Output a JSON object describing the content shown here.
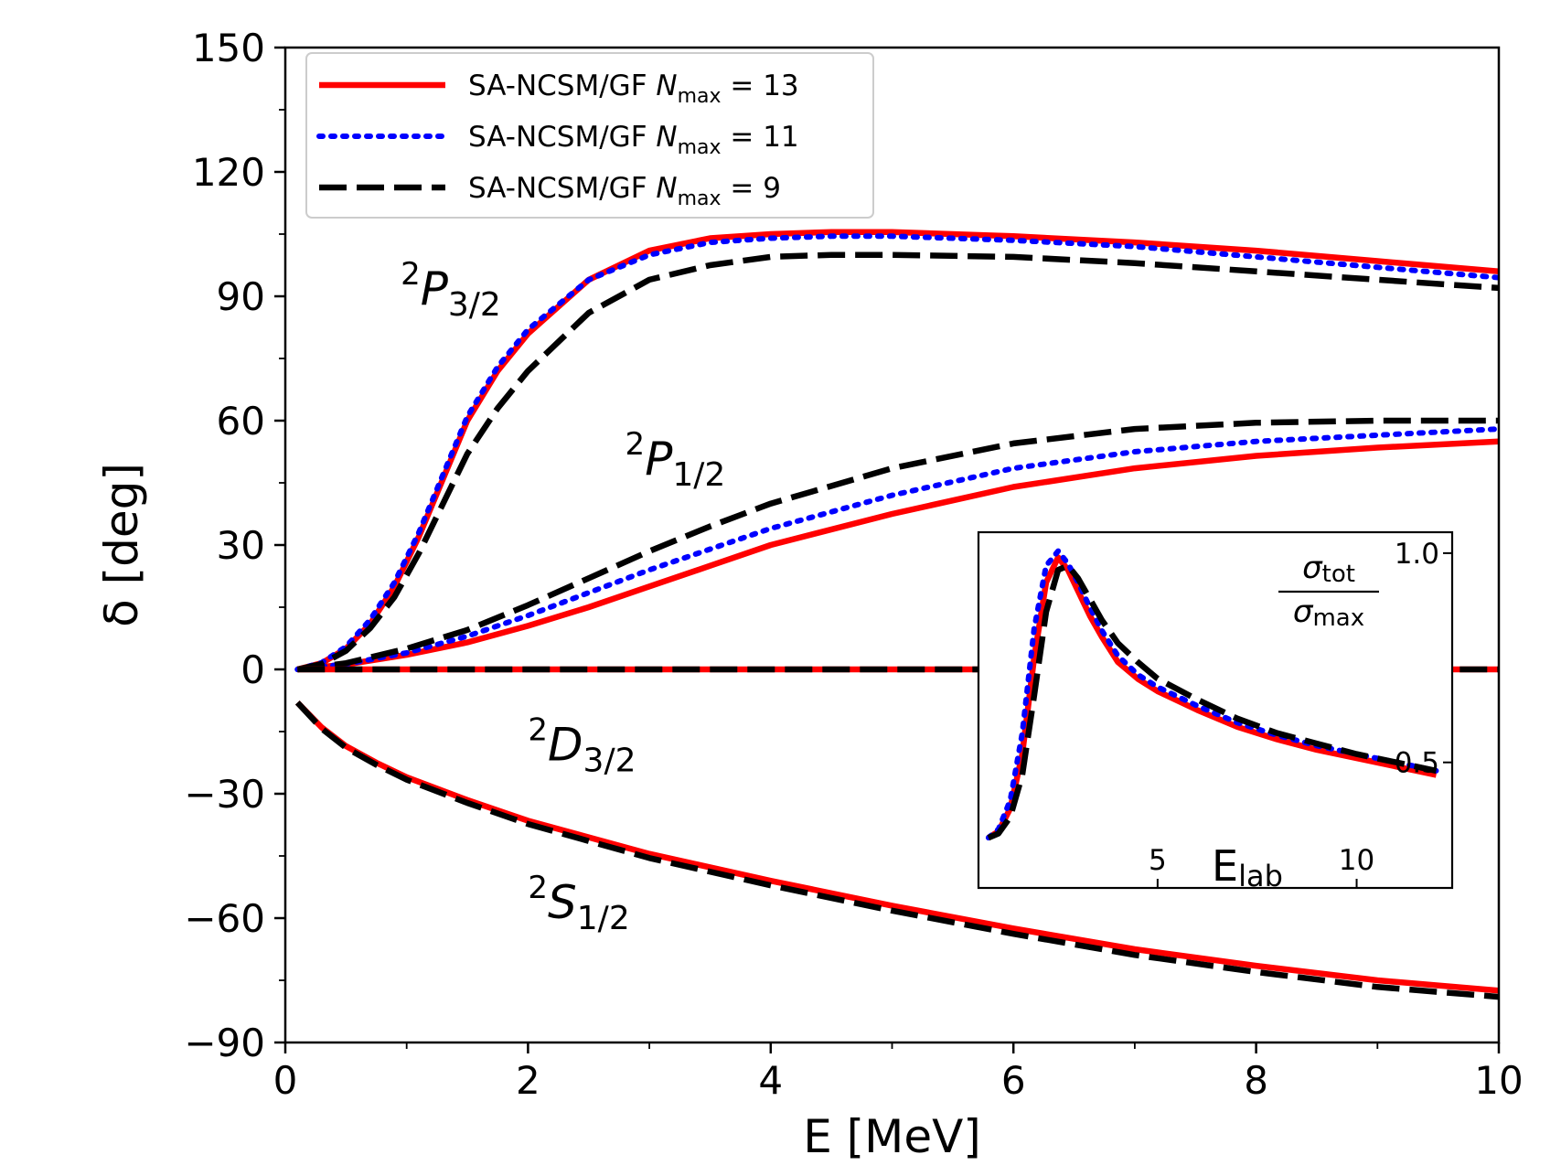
{
  "chart_data": [
    {
      "type": "line",
      "xlabel": "E [MeV]",
      "ylabel": "δ [deg]",
      "xlim": [
        0,
        10
      ],
      "ylim": [
        -90,
        150
      ],
      "xticks": [
        0,
        2,
        4,
        6,
        8,
        10
      ],
      "yticks": [
        -90,
        -60,
        -30,
        0,
        30,
        60,
        90,
        120,
        150
      ],
      "xtick_labels": [
        "0",
        "2",
        "4",
        "6",
        "8",
        "10"
      ],
      "ytick_labels": [
        "−90",
        "−60",
        "−30",
        "0",
        "30",
        "60",
        "90",
        "120",
        "150"
      ],
      "grid": false,
      "legend": {
        "placement": "top-left",
        "entries": [
          {
            "prefix": "SA-NCSM/GF",
            "n_label": "N",
            "n_sub": "max",
            "n_value": "= 13",
            "color": "#ff0000",
            "style": "solid"
          },
          {
            "prefix": "SA-NCSM/GF",
            "n_label": "N",
            "n_sub": "max",
            "n_value": "= 11",
            "color": "#0000ff",
            "style": "dotted"
          },
          {
            "prefix": "SA-NCSM/GF",
            "n_label": "N",
            "n_sub": "max",
            "n_value": "= 9",
            "color": "#000000",
            "style": "dashed"
          }
        ]
      },
      "annotations": [
        {
          "id": "p32",
          "sup": "2",
          "letter": "P",
          "sub": "3/2",
          "x": 0.95,
          "y": 88
        },
        {
          "id": "p12",
          "sup": "2",
          "letter": "P",
          "sub": "1/2",
          "x": 2.8,
          "y": 47
        },
        {
          "id": "d32",
          "sup": "2",
          "letter": "D",
          "sub": "3/2",
          "x": 2.0,
          "y": -22
        },
        {
          "id": "s12",
          "sup": "2",
          "letter": "S",
          "sub": "1/2",
          "x": 2.0,
          "y": -60
        }
      ],
      "series": [
        {
          "wave": "2P3/2",
          "nmax": 13,
          "color": "#ff0000",
          "style": "solid",
          "x": [
            0.1,
            0.3,
            0.5,
            0.7,
            0.9,
            1.1,
            1.3,
            1.5,
            1.75,
            2.0,
            2.5,
            3.0,
            3.5,
            4.0,
            4.5,
            5.0,
            6.0,
            7.0,
            8.0,
            9.0,
            10.0
          ],
          "y": [
            0,
            1.5,
            5,
            11,
            20,
            32,
            46,
            60,
            72,
            81,
            94,
            101,
            104,
            105,
            105.5,
            105.5,
            104.5,
            103,
            101,
            98.5,
            96
          ]
        },
        {
          "wave": "2P3/2",
          "nmax": 11,
          "color": "#0000ff",
          "style": "dotted",
          "x": [
            0.1,
            0.3,
            0.5,
            0.7,
            0.9,
            1.1,
            1.3,
            1.5,
            1.75,
            2.0,
            2.5,
            3.0,
            3.5,
            4.0,
            4.5,
            5.0,
            6.0,
            7.0,
            8.0,
            9.0,
            10.0
          ],
          "y": [
            0,
            1.6,
            5.5,
            12,
            21,
            33,
            47,
            61,
            73,
            82,
            94,
            100,
            103,
            104,
            104.5,
            104.5,
            103.5,
            102,
            99.5,
            97,
            94.5
          ]
        },
        {
          "wave": "2P3/2",
          "nmax": 9,
          "color": "#000000",
          "style": "dashed",
          "x": [
            0.1,
            0.3,
            0.5,
            0.7,
            0.9,
            1.1,
            1.3,
            1.5,
            1.75,
            2.0,
            2.5,
            3.0,
            3.5,
            4.0,
            4.5,
            5.0,
            6.0,
            7.0,
            8.0,
            9.0,
            10.0
          ],
          "y": [
            0,
            1.3,
            4.5,
            10,
            17.5,
            28,
            40,
            52,
            63,
            72,
            86,
            94,
            97.5,
            99.5,
            100,
            100,
            99.5,
            98,
            96,
            94,
            92
          ]
        },
        {
          "wave": "2P1/2",
          "nmax": 13,
          "color": "#ff0000",
          "style": "solid",
          "x": [
            0.1,
            0.5,
            1.0,
            1.5,
            2.0,
            2.5,
            3.0,
            3.5,
            4.0,
            5.0,
            6.0,
            7.0,
            8.0,
            9.0,
            10.0
          ],
          "y": [
            0,
            1.2,
            3.5,
            6.5,
            10.5,
            15,
            20,
            25,
            30,
            37.5,
            44,
            48.5,
            51.5,
            53.5,
            55
          ]
        },
        {
          "wave": "2P1/2",
          "nmax": 11,
          "color": "#0000ff",
          "style": "dotted",
          "x": [
            0.1,
            0.5,
            1.0,
            1.5,
            2.0,
            2.5,
            3.0,
            3.5,
            4.0,
            5.0,
            6.0,
            7.0,
            8.0,
            9.0,
            10.0
          ],
          "y": [
            0,
            1.3,
            4,
            8,
            13,
            18.5,
            24,
            29,
            34,
            42,
            48.5,
            52.5,
            55,
            56.5,
            58
          ]
        },
        {
          "wave": "2P1/2",
          "nmax": 9,
          "color": "#000000",
          "style": "dashed",
          "x": [
            0.1,
            0.5,
            1.0,
            1.5,
            2.0,
            2.5,
            3.0,
            3.5,
            4.0,
            5.0,
            6.0,
            7.0,
            8.0,
            9.0,
            10.0
          ],
          "y": [
            0,
            1.5,
            5,
            9.5,
            15.5,
            22,
            28.5,
            34.5,
            40,
            48.5,
            54.5,
            58,
            59.5,
            60,
            60
          ]
        },
        {
          "wave": "2D3/2",
          "nmax": 13,
          "color": "#ff0000",
          "style": "solid",
          "x": [
            0.1,
            10.0
          ],
          "y": [
            0,
            0
          ]
        },
        {
          "wave": "2D3/2",
          "nmax": 9,
          "color": "#000000",
          "style": "dashed",
          "x": [
            0.1,
            10.0
          ],
          "y": [
            0,
            0
          ]
        },
        {
          "wave": "2S1/2",
          "nmax": 13,
          "color": "#ff0000",
          "style": "solid",
          "x": [
            0.1,
            0.3,
            0.5,
            0.75,
            1.0,
            1.5,
            2.0,
            3.0,
            4.0,
            5.0,
            6.0,
            7.0,
            8.0,
            9.0,
            10.0
          ],
          "y": [
            -8,
            -14,
            -18.5,
            -22.5,
            -26,
            -31.5,
            -36.5,
            -44.5,
            -51,
            -57,
            -62.5,
            -67.5,
            -71.5,
            -75,
            -77.5
          ]
        },
        {
          "wave": "2S1/2",
          "nmax": 9,
          "color": "#000000",
          "style": "dashed",
          "x": [
            0.1,
            0.3,
            0.5,
            0.75,
            1.0,
            1.5,
            2.0,
            3.0,
            4.0,
            5.0,
            6.0,
            7.0,
            8.0,
            9.0,
            10.0
          ],
          "y": [
            -8,
            -14.3,
            -18.9,
            -23,
            -26.6,
            -32.2,
            -37.3,
            -45.5,
            -52.1,
            -58.2,
            -63.8,
            -68.9,
            -73,
            -76.6,
            -79
          ]
        }
      ]
    },
    {
      "type": "line",
      "inset": true,
      "placement": "lower-right",
      "xlabel_main": "E",
      "xlabel_sub": "lab",
      "ylabel_num": "σ",
      "ylabel_num_sub": "tot",
      "ylabel_den": "σ",
      "ylabel_den_sub": "max",
      "xlim": [
        0.5,
        12.4
      ],
      "ylim": [
        0.2,
        1.05
      ],
      "xticks": [
        5,
        10
      ],
      "yticks": [
        0.5,
        1.0
      ],
      "xtick_labels": [
        "5",
        "10"
      ],
      "ytick_labels": [
        "0.5",
        "1.0"
      ],
      "series": [
        {
          "nmax": 13,
          "color": "#ff0000",
          "style": "solid",
          "x": [
            0.75,
            1.0,
            1.3,
            1.6,
            1.9,
            2.2,
            2.5,
            2.75,
            3.0,
            3.3,
            3.6,
            4.0,
            4.5,
            5.0,
            6.0,
            7.0,
            8.0,
            9.0,
            10.0,
            11.0,
            12.0
          ],
          "y": [
            0.32,
            0.335,
            0.39,
            0.52,
            0.75,
            0.93,
            0.99,
            0.96,
            0.91,
            0.85,
            0.8,
            0.74,
            0.7,
            0.67,
            0.625,
            0.585,
            0.555,
            0.53,
            0.51,
            0.49,
            0.47
          ]
        },
        {
          "nmax": 11,
          "color": "#0000ff",
          "style": "dotted",
          "x": [
            0.75,
            1.0,
            1.3,
            1.6,
            1.9,
            2.2,
            2.5,
            2.75,
            3.0,
            3.3,
            3.6,
            4.0,
            4.5,
            5.0,
            6.0,
            7.0,
            8.0,
            9.0,
            10.0,
            11.0,
            12.0
          ],
          "y": [
            0.32,
            0.34,
            0.41,
            0.57,
            0.82,
            0.97,
            1.005,
            0.975,
            0.93,
            0.87,
            0.815,
            0.755,
            0.71,
            0.68,
            0.635,
            0.595,
            0.565,
            0.54,
            0.52,
            0.5,
            0.48
          ]
        },
        {
          "nmax": 9,
          "color": "#000000",
          "style": "dashed",
          "x": [
            0.75,
            1.0,
            1.3,
            1.6,
            1.9,
            2.2,
            2.5,
            2.75,
            3.0,
            3.3,
            3.6,
            4.0,
            4.5,
            5.0,
            6.0,
            7.0,
            8.0,
            9.0,
            10.0,
            11.0,
            12.0
          ],
          "y": [
            0.32,
            0.33,
            0.37,
            0.47,
            0.66,
            0.86,
            0.96,
            0.97,
            0.94,
            0.89,
            0.84,
            0.785,
            0.74,
            0.7,
            0.65,
            0.605,
            0.57,
            0.545,
            0.52,
            0.5,
            0.48
          ]
        }
      ]
    }
  ]
}
